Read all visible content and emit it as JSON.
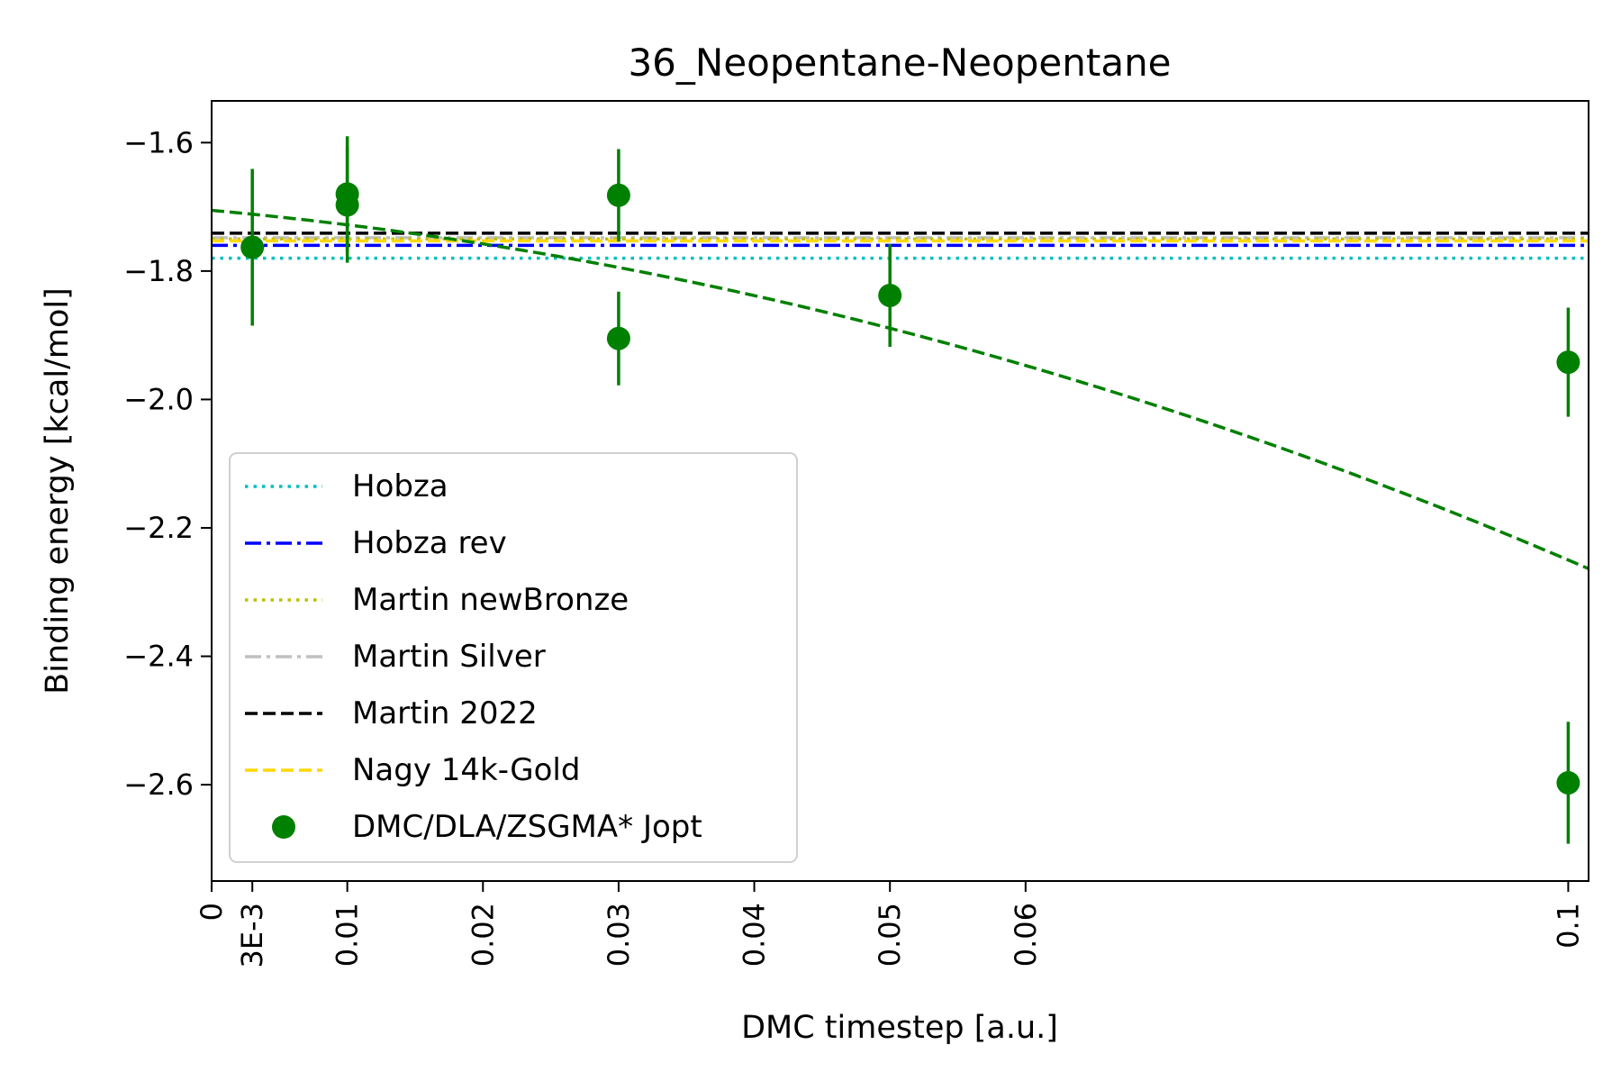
{
  "chart_data": {
    "type": "scatter",
    "title": "36_Neopentane-Neopentane",
    "xlabel": "DMC timestep [a.u.]",
    "ylabel": "Binding energy [kcal/mol]",
    "xlim": [
      0,
      0.1015
    ],
    "ylim": [
      -2.75,
      -1.535
    ],
    "x_ticks": [
      {
        "value": 0,
        "label": "0"
      },
      {
        "value": 0.003,
        "label": "3E-3"
      },
      {
        "value": 0.01,
        "label": "0.01"
      },
      {
        "value": 0.02,
        "label": "0.02"
      },
      {
        "value": 0.03,
        "label": "0.03"
      },
      {
        "value": 0.04,
        "label": "0.04"
      },
      {
        "value": 0.05,
        "label": "0.05"
      },
      {
        "value": 0.06,
        "label": "0.06"
      },
      {
        "value": 0.1,
        "label": "0.1"
      }
    ],
    "y_ticks": [
      {
        "value": -1.6,
        "label": "−1.6"
      },
      {
        "value": -1.8,
        "label": "−1.8"
      },
      {
        "value": -2.0,
        "label": "−2.0"
      },
      {
        "value": -2.2,
        "label": "−2.2"
      },
      {
        "value": -2.4,
        "label": "−2.4"
      },
      {
        "value": -2.6,
        "label": "−2.6"
      }
    ],
    "grid": false,
    "legend_position": "lower-left",
    "reference_lines": [
      {
        "name": "Hobza",
        "value": -1.78,
        "color": "#00bfbf",
        "style": "dotted"
      },
      {
        "name": "Hobza rev",
        "value": -1.76,
        "color": "#0000ff",
        "style": "dashdot"
      },
      {
        "name": "Martin newBronze",
        "value": -1.75,
        "color": "#bfbf00",
        "style": "dotted"
      },
      {
        "name": "Martin Silver",
        "value": -1.748,
        "color": "#c0c0c0",
        "style": "dashdot"
      },
      {
        "name": "Martin 2022",
        "value": -1.741,
        "color": "#000000",
        "style": "dashed"
      },
      {
        "name": "Nagy 14k-Gold",
        "value": -1.753,
        "color": "#ffd700",
        "style": "dashed"
      }
    ],
    "points": {
      "name": "DMC/DLA/ZSGMA* Jopt",
      "color": "#008000",
      "data": [
        {
          "x": 0.003,
          "y": -1.763,
          "err": 0.122
        },
        {
          "x": 0.01,
          "y": -1.68,
          "err": 0.09
        },
        {
          "x": 0.01,
          "y": -1.697,
          "err": 0.09
        },
        {
          "x": 0.03,
          "y": -1.682,
          "err": 0.072
        },
        {
          "x": 0.03,
          "y": -1.905,
          "err": 0.073
        },
        {
          "x": 0.05,
          "y": -1.838,
          "err": 0.08
        },
        {
          "x": 0.1,
          "y": -1.942,
          "err": 0.085
        },
        {
          "x": 0.1,
          "y": -2.597,
          "err": 0.095
        }
      ]
    },
    "fit": {
      "color": "#008000",
      "style": "dashed",
      "coefficients": [
        -1.7055,
        -1.9,
        -35.45
      ]
    }
  }
}
